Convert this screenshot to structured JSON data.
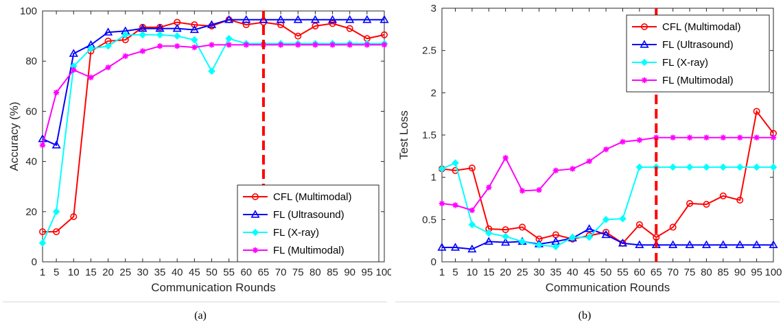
{
  "captions": {
    "a": "(a)",
    "b": "(b)"
  },
  "chart_data": [
    {
      "type": "line",
      "panel": "a",
      "xlabel": "Communication Rounds",
      "ylabel": "Accuracy (%)",
      "xlim": [
        1,
        100
      ],
      "ylim": [
        0,
        100
      ],
      "x": [
        1,
        5,
        10,
        15,
        20,
        25,
        30,
        35,
        40,
        45,
        50,
        55,
        60,
        65,
        70,
        75,
        80,
        85,
        90,
        95,
        100
      ],
      "xticks": [
        1,
        5,
        10,
        15,
        20,
        25,
        30,
        35,
        40,
        45,
        50,
        55,
        60,
        65,
        70,
        75,
        80,
        85,
        90,
        95,
        100
      ],
      "yticks": [
        0,
        20,
        40,
        60,
        80,
        100
      ],
      "grid": false,
      "legend": "bottom-right",
      "vline": {
        "x": 65,
        "color": "#ff0000",
        "style": "dashed"
      },
      "series": [
        {
          "name": "CFL (Multimodal)",
          "color": "#ff0000",
          "marker": "circle",
          "values": [
            12,
            12,
            18,
            84,
            88,
            88.5,
            93.5,
            93.5,
            95.5,
            94.5,
            94,
            96.5,
            94.5,
            95.5,
            94.5,
            90,
            94,
            95,
            93,
            89,
            90.5
          ]
        },
        {
          "name": "FL (Ultrasound)",
          "color": "#0000ff",
          "marker": "triangle",
          "values": [
            49,
            46.5,
            83,
            86.5,
            91.5,
            92,
            93,
            93,
            93,
            92.5,
            94.5,
            96.5,
            96.5,
            96.5,
            96.5,
            96.5,
            96.5,
            96.5,
            96.5,
            96.5,
            96.5
          ]
        },
        {
          "name": "FL (X-ray)",
          "color": "#00ffff",
          "marker": "diamond",
          "values": [
            7.5,
            20,
            78,
            85,
            86,
            90.5,
            90.5,
            90.5,
            90,
            88.5,
            76,
            89,
            87,
            87,
            87,
            87,
            87,
            87,
            87,
            87,
            87
          ]
        },
        {
          "name": "FL (Multimodal)",
          "color": "#ff00ff",
          "marker": "star",
          "values": [
            46.5,
            67.5,
            76.5,
            73.5,
            77.5,
            82,
            84,
            86,
            86,
            85.5,
            86.5,
            86.5,
            86.5,
            86.5,
            86.5,
            86.5,
            86.5,
            86.5,
            86.5,
            86.5,
            86.5
          ]
        }
      ]
    },
    {
      "type": "line",
      "panel": "b",
      "xlabel": "Communication Rounds",
      "ylabel": "Test Loss",
      "xlim": [
        1,
        100
      ],
      "ylim": [
        0,
        3
      ],
      "x": [
        1,
        5,
        10,
        15,
        20,
        25,
        30,
        35,
        40,
        45,
        50,
        55,
        60,
        65,
        70,
        75,
        80,
        85,
        90,
        95,
        100
      ],
      "xticks": [
        1,
        5,
        10,
        15,
        20,
        25,
        30,
        35,
        40,
        45,
        50,
        55,
        60,
        65,
        70,
        75,
        80,
        85,
        90,
        95,
        100
      ],
      "yticks": [
        0,
        0.5,
        1,
        1.5,
        2,
        2.5,
        3
      ],
      "grid": false,
      "legend": "top-right",
      "vline": {
        "x": 65,
        "color": "#ff0000",
        "style": "dashed"
      },
      "series": [
        {
          "name": "CFL (Multimodal)",
          "color": "#ff0000",
          "marker": "circle",
          "values": [
            1.1,
            1.08,
            1.11,
            0.39,
            0.38,
            0.41,
            0.27,
            0.32,
            0.27,
            0.31,
            0.35,
            0.22,
            0.44,
            0.29,
            0.41,
            0.69,
            0.68,
            0.78,
            0.73,
            1.78,
            1.52
          ]
        },
        {
          "name": "FL (Ultrasound)",
          "color": "#0000ff",
          "marker": "triangle",
          "values": [
            0.17,
            0.17,
            0.15,
            0.24,
            0.23,
            0.24,
            0.21,
            0.24,
            0.28,
            0.39,
            0.32,
            0.22,
            0.2,
            0.2,
            0.2,
            0.2,
            0.2,
            0.2,
            0.2,
            0.2,
            0.2
          ]
        },
        {
          "name": "FL (X-ray)",
          "color": "#00ffff",
          "marker": "diamond",
          "values": [
            1.1,
            1.17,
            0.44,
            0.34,
            0.3,
            0.24,
            0.2,
            0.18,
            0.29,
            0.29,
            0.5,
            0.51,
            1.12,
            1.12,
            1.12,
            1.12,
            1.12,
            1.12,
            1.12,
            1.12,
            1.12
          ]
        },
        {
          "name": "FL (Multimodal)",
          "color": "#ff00ff",
          "marker": "star",
          "values": [
            0.69,
            0.67,
            0.61,
            0.88,
            1.23,
            0.84,
            0.85,
            1.08,
            1.1,
            1.19,
            1.33,
            1.42,
            1.44,
            1.47,
            1.47,
            1.47,
            1.47,
            1.47,
            1.47,
            1.47,
            1.47
          ]
        }
      ]
    }
  ]
}
